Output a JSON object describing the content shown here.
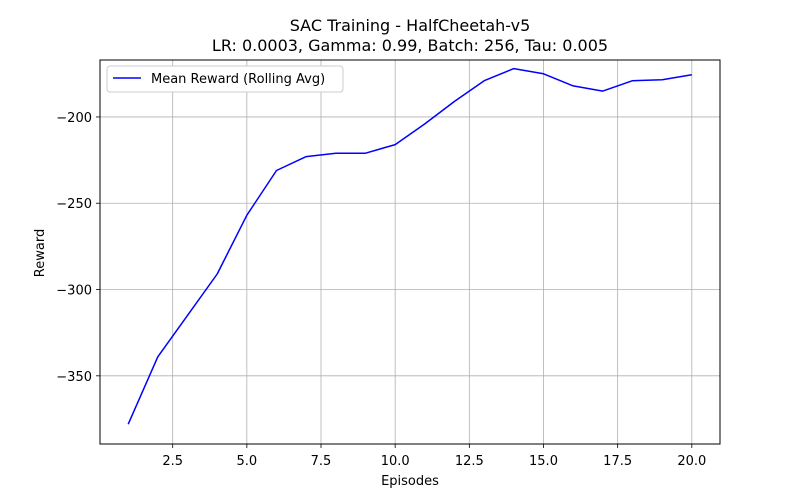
{
  "chart_data": {
    "type": "line",
    "title": "SAC Training - HalfCheetah-v5",
    "subtitle": "LR: 0.0003, Gamma: 0.99, Batch: 256, Tau: 0.005",
    "xlabel": "Episodes",
    "ylabel": "Reward",
    "xlim": [
      0.05,
      20.95
    ],
    "ylim": [
      -389.5,
      -167
    ],
    "xticks": [
      2.5,
      5.0,
      7.5,
      10.0,
      12.5,
      15.0,
      17.5,
      20.0
    ],
    "xtick_labels": [
      "2.5",
      "5.0",
      "7.5",
      "10.0",
      "12.5",
      "15.0",
      "17.5",
      "20.0"
    ],
    "yticks": [
      -350,
      -300,
      -250,
      -200
    ],
    "ytick_labels": [
      "−350",
      "−300",
      "−250",
      "−200"
    ],
    "grid": true,
    "legend": "top-left",
    "series": [
      {
        "name": "Mean Reward (Rolling Avg)",
        "color": "#0000ff",
        "x": [
          1,
          2,
          3,
          4,
          5,
          6,
          7,
          8,
          9,
          10,
          11,
          12,
          13,
          14,
          15,
          16,
          17,
          18,
          19,
          20
        ],
        "y": [
          -378,
          -339,
          -315,
          -291,
          -257,
          -231,
          -223,
          -221,
          -221,
          -216,
          -204,
          -191,
          -179,
          -172,
          -175,
          -182,
          -185,
          -179,
          -178.5,
          -175.5
        ]
      }
    ]
  }
}
